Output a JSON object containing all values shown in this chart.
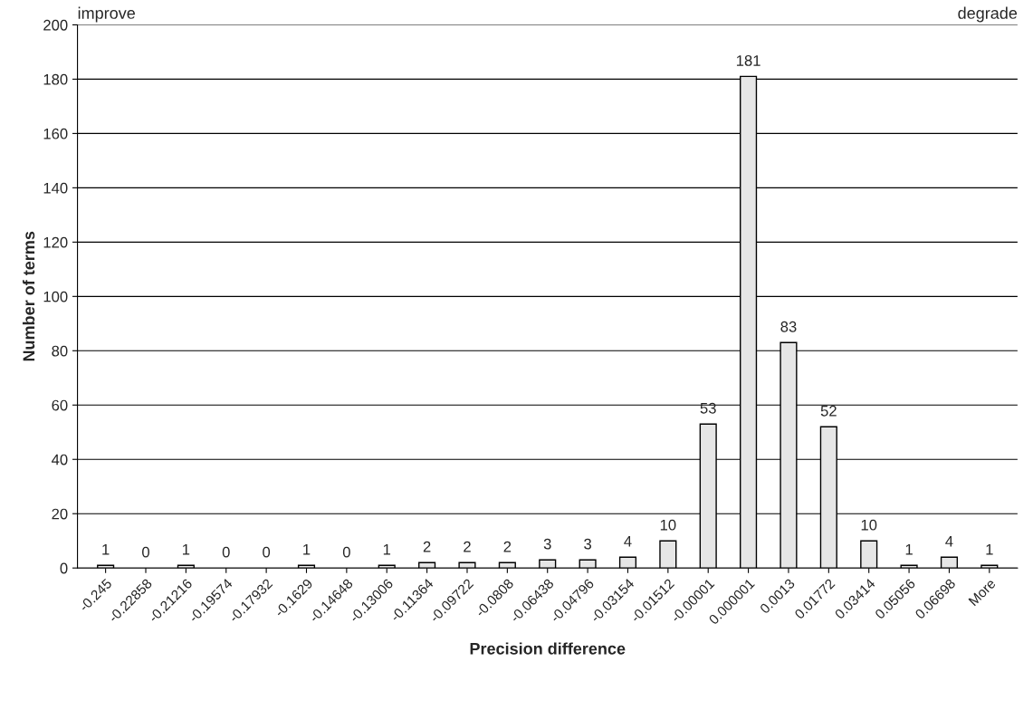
{
  "chart_data": {
    "type": "bar",
    "xlabel": "Precision difference",
    "ylabel": "Number of terms",
    "categories": [
      "-0.245",
      "-0.22858",
      "-0.21216",
      "-0.19574",
      "-0.17932",
      "-0.1629",
      "-0.14648",
      "-0.13006",
      "-0.11364",
      "-0.09722",
      "-0.0808",
      "-0.06438",
      "-0.04796",
      "-0.03154",
      "-0.01512",
      "-0.00001",
      "0.000001",
      "0.0013",
      "0.01772",
      "0.03414",
      "0.05056",
      "0.06698",
      "More"
    ],
    "values": [
      1,
      0,
      1,
      0,
      0,
      1,
      0,
      1,
      2,
      2,
      2,
      3,
      3,
      4,
      10,
      53,
      181,
      83,
      52,
      10,
      1,
      4,
      1
    ],
    "color": "#e6e6e6",
    "ylim": [
      0,
      200
    ],
    "yticks": [
      0,
      20,
      40,
      60,
      80,
      100,
      120,
      140,
      160,
      180,
      200
    ],
    "grid": "y",
    "data_labels": true,
    "legend": false,
    "annotations": [
      "improve",
      "degrade"
    ]
  }
}
